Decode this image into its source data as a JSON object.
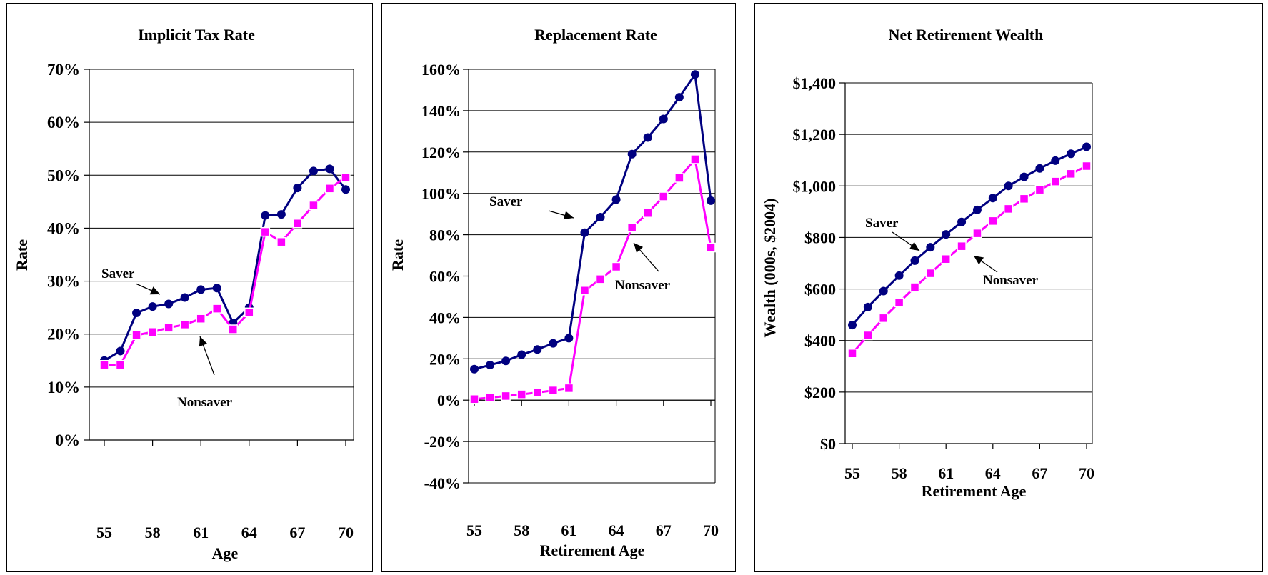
{
  "chart_data": [
    {
      "type": "line",
      "title": "Implicit Tax Rate",
      "xlabel": "Age",
      "ylabel": "Rate",
      "x": [
        55,
        56,
        57,
        58,
        59,
        60,
        61,
        62,
        63,
        64,
        65,
        66,
        67,
        68,
        69,
        70
      ],
      "x_ticks": [
        55,
        58,
        61,
        64,
        67,
        70
      ],
      "ylim": [
        0,
        70
      ],
      "y_step": 10,
      "y_tick_labels": [
        "0%",
        "10%",
        "20%",
        "30%",
        "40%",
        "50%",
        "60%",
        "70%"
      ],
      "grid": true,
      "series": [
        {
          "name": "Saver",
          "color": "#000080",
          "marker": "circle",
          "values": [
            15.0,
            16.8,
            24.0,
            25.2,
            25.7,
            26.9,
            28.4,
            28.7,
            22.1,
            25.0,
            42.4,
            42.6,
            47.6,
            50.8,
            51.2,
            47.3
          ]
        },
        {
          "name": "Nonsaver",
          "color": "#ff00ff",
          "marker": "square",
          "values": [
            14.2,
            14.2,
            19.8,
            20.4,
            21.2,
            21.8,
            22.9,
            24.8,
            20.9,
            24.1,
            39.3,
            37.4,
            40.9,
            44.3,
            47.5,
            49.6
          ]
        }
      ],
      "annotations": [
        {
          "text": "Saver",
          "target_series": "Saver",
          "target_x": 59
        },
        {
          "text": "Nonsaver",
          "target_series": "Nonsaver",
          "target_x": 60.6
        }
      ]
    },
    {
      "type": "line",
      "title": "Replacement Rate",
      "xlabel": "Retirement Age",
      "ylabel": "Rate",
      "x": [
        55,
        56,
        57,
        58,
        59,
        60,
        61,
        62,
        63,
        64,
        65,
        66,
        67,
        68,
        69,
        70
      ],
      "x_ticks": [
        55,
        58,
        61,
        64,
        67,
        70
      ],
      "ylim": [
        -40,
        160
      ],
      "y_step": 20,
      "y_tick_labels": [
        "-40%",
        "-20%",
        "0%",
        "20%",
        "40%",
        "60%",
        "80%",
        "100%",
        "120%",
        "140%",
        "160%"
      ],
      "grid": true,
      "series": [
        {
          "name": "Saver",
          "color": "#000080",
          "marker": "circle",
          "values": [
            15,
            17,
            19,
            22,
            24.5,
            27.5,
            30,
            81,
            88.5,
            97,
            119,
            127,
            136,
            146.5,
            157.5,
            96.5
          ]
        },
        {
          "name": "Nonsaver",
          "color": "#ff00ff",
          "marker": "square",
          "values": [
            0.5,
            1.2,
            2,
            2.8,
            3.7,
            4.7,
            5.8,
            53,
            58.5,
            64.5,
            83.5,
            90.5,
            98.5,
            107.5,
            116.5,
            73.8
          ]
        }
      ],
      "annotations": [
        {
          "text": "Saver",
          "target_series": "Saver",
          "target_x": 61.2
        },
        {
          "text": "Nonsaver",
          "target_series": "Nonsaver",
          "target_x": 65.5
        }
      ]
    },
    {
      "type": "line",
      "title": "Net Retirement Wealth",
      "xlabel": "Retirement Age",
      "ylabel": "Wealth (000s, $2004)",
      "x": [
        55,
        56,
        57,
        58,
        59,
        60,
        61,
        62,
        63,
        64,
        65,
        66,
        67,
        68,
        69,
        70
      ],
      "x_ticks": [
        55,
        58,
        61,
        64,
        67,
        70
      ],
      "ylim": [
        0,
        1400
      ],
      "y_step": 200,
      "y_tick_labels": [
        "$0",
        "$200",
        "$400",
        "$600",
        "$800",
        "$1,000",
        "$1,200",
        "$1,400"
      ],
      "grid": true,
      "series": [
        {
          "name": "Saver",
          "color": "#000080",
          "marker": "circle",
          "values": [
            460,
            530,
            592,
            652,
            710,
            762,
            812,
            860,
            907,
            953,
            1000,
            1035,
            1068,
            1098,
            1125,
            1152
          ]
        },
        {
          "name": "Nonsaver",
          "color": "#ff00ff",
          "marker": "square",
          "values": [
            350,
            420,
            487,
            548,
            607,
            661,
            716,
            766,
            816,
            864,
            911,
            950,
            985,
            1017,
            1047,
            1077
          ]
        }
      ],
      "annotations": [
        {
          "text": "Saver",
          "target_series": "Saver",
          "target_x": 59.5
        },
        {
          "text": "Nonsaver",
          "target_series": "Nonsaver",
          "target_x": 62.7
        }
      ]
    }
  ]
}
